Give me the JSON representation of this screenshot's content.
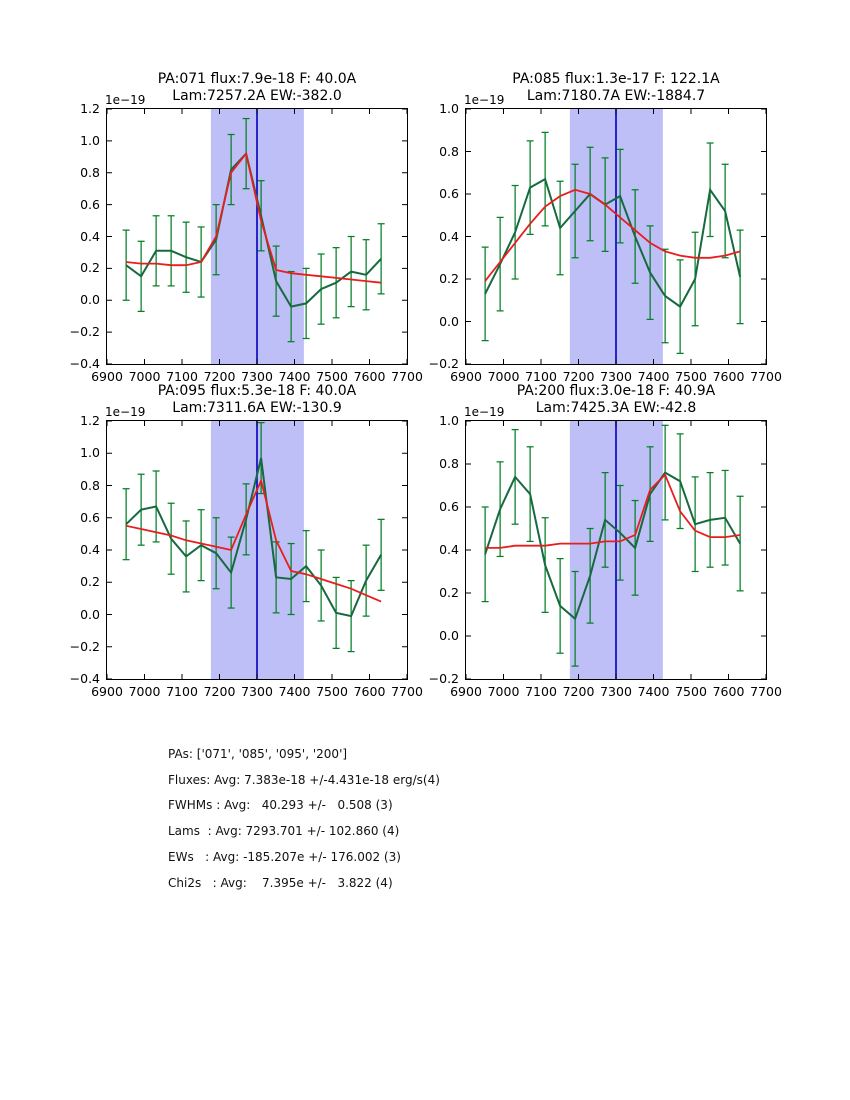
{
  "colors": {
    "background": "#ffffff",
    "band": "#bfbff7",
    "vline": "#0000bf",
    "data_line": "#17693f",
    "error_bar": "#038026",
    "fit_line": "#e81e1e",
    "axis": "#000000"
  },
  "chart_data": [
    {
      "type": "line",
      "title_line1": "PA:071 flux:7.9e-18 F: 40.0A",
      "title_line2": "Lam:7257.2A EW:-382.0",
      "offset_label": "1e−19",
      "xlim": [
        6900,
        7700
      ],
      "ylim": [
        -0.4,
        1.2
      ],
      "xticks": [
        6900,
        7000,
        7100,
        7200,
        7300,
        7400,
        7500,
        7600,
        7700
      ],
      "yticks": [
        -0.4,
        -0.2,
        0.0,
        0.2,
        0.4,
        0.6,
        0.8,
        1.0,
        1.2
      ],
      "band": [
        7177,
        7425
      ],
      "vline": 7300,
      "x": [
        6951,
        6991,
        7031,
        7071,
        7111,
        7151,
        7191,
        7231,
        7271,
        7311,
        7351,
        7391,
        7431,
        7471,
        7511,
        7551,
        7591,
        7631
      ],
      "series": [
        {
          "name": "data",
          "err": 0.22,
          "values": [
            0.22,
            0.15,
            0.31,
            0.31,
            0.27,
            0.24,
            0.38,
            0.82,
            0.92,
            0.53,
            0.12,
            -0.04,
            -0.02,
            0.07,
            0.11,
            0.18,
            0.16,
            0.26
          ]
        },
        {
          "name": "fit",
          "values": [
            0.24,
            0.23,
            0.23,
            0.22,
            0.22,
            0.24,
            0.4,
            0.8,
            0.92,
            0.5,
            0.19,
            0.17,
            0.16,
            0.15,
            0.14,
            0.13,
            0.12,
            0.11
          ]
        }
      ]
    },
    {
      "type": "line",
      "title_line1": "PA:085 flux:1.3e-17 F: 122.1A",
      "title_line2": "Lam:7180.7A EW:-1884.7",
      "offset_label": "1e−19",
      "xlim": [
        6900,
        7700
      ],
      "ylim": [
        -0.2,
        1.0
      ],
      "xticks": [
        6900,
        7000,
        7100,
        7200,
        7300,
        7400,
        7500,
        7600,
        7700
      ],
      "yticks": [
        -0.2,
        0.0,
        0.2,
        0.4,
        0.6,
        0.8,
        1.0
      ],
      "band": [
        7177,
        7425
      ],
      "vline": 7300,
      "x": [
        6951,
        6991,
        7031,
        7071,
        7111,
        7151,
        7191,
        7231,
        7271,
        7311,
        7351,
        7391,
        7431,
        7471,
        7511,
        7551,
        7591,
        7631
      ],
      "series": [
        {
          "name": "data",
          "err": 0.22,
          "values": [
            0.13,
            0.27,
            0.42,
            0.63,
            0.67,
            0.44,
            0.52,
            0.6,
            0.55,
            0.59,
            0.4,
            0.23,
            0.12,
            0.07,
            0.2,
            0.62,
            0.52,
            0.21
          ]
        },
        {
          "name": "fit",
          "values": [
            0.19,
            0.28,
            0.37,
            0.46,
            0.54,
            0.59,
            0.62,
            0.6,
            0.55,
            0.49,
            0.43,
            0.37,
            0.33,
            0.31,
            0.3,
            0.3,
            0.31,
            0.33
          ]
        }
      ]
    },
    {
      "type": "line",
      "title_line1": "PA:095 flux:5.3e-18 F: 40.0A",
      "title_line2": "Lam:7311.6A EW:-130.9",
      "offset_label": "1e−19",
      "xlim": [
        6900,
        7700
      ],
      "ylim": [
        -0.4,
        1.2
      ],
      "xticks": [
        6900,
        7000,
        7100,
        7200,
        7300,
        7400,
        7500,
        7600,
        7700
      ],
      "yticks": [
        -0.4,
        -0.2,
        0.0,
        0.2,
        0.4,
        0.6,
        0.8,
        1.0,
        1.2
      ],
      "band": [
        7177,
        7425
      ],
      "vline": 7300,
      "x": [
        6951,
        6991,
        7031,
        7071,
        7111,
        7151,
        7191,
        7231,
        7271,
        7311,
        7351,
        7391,
        7431,
        7471,
        7511,
        7551,
        7591,
        7631
      ],
      "series": [
        {
          "name": "data",
          "err": 0.22,
          "values": [
            0.56,
            0.65,
            0.67,
            0.47,
            0.36,
            0.43,
            0.38,
            0.26,
            0.59,
            0.97,
            0.23,
            0.22,
            0.3,
            0.18,
            0.01,
            -0.01,
            0.21,
            0.37
          ]
        },
        {
          "name": "fit",
          "values": [
            0.55,
            0.53,
            0.51,
            0.49,
            0.46,
            0.44,
            0.42,
            0.4,
            0.62,
            0.83,
            0.46,
            0.27,
            0.25,
            0.22,
            0.19,
            0.16,
            0.12,
            0.08
          ]
        }
      ]
    },
    {
      "type": "line",
      "title_line1": "PA:200 flux:3.0e-18 F: 40.9A",
      "title_line2": "Lam:7425.3A EW:-42.8",
      "offset_label": "1e−19",
      "xlim": [
        6900,
        7700
      ],
      "ylim": [
        -0.2,
        1.0
      ],
      "xticks": [
        6900,
        7000,
        7100,
        7200,
        7300,
        7400,
        7500,
        7600,
        7700
      ],
      "yticks": [
        -0.2,
        0.0,
        0.2,
        0.4,
        0.6,
        0.8,
        1.0
      ],
      "band": [
        7177,
        7425
      ],
      "vline": 7300,
      "x": [
        6951,
        6991,
        7031,
        7071,
        7111,
        7151,
        7191,
        7231,
        7271,
        7311,
        7351,
        7391,
        7431,
        7471,
        7511,
        7551,
        7591,
        7631
      ],
      "series": [
        {
          "name": "data",
          "err": 0.22,
          "values": [
            0.38,
            0.59,
            0.74,
            0.66,
            0.33,
            0.14,
            0.08,
            0.28,
            0.54,
            0.48,
            0.41,
            0.66,
            0.76,
            0.72,
            0.52,
            0.54,
            0.55,
            0.43
          ]
        },
        {
          "name": "fit",
          "values": [
            0.41,
            0.41,
            0.42,
            0.42,
            0.42,
            0.43,
            0.43,
            0.43,
            0.44,
            0.44,
            0.47,
            0.68,
            0.75,
            0.58,
            0.49,
            0.46,
            0.46,
            0.47
          ]
        }
      ]
    }
  ],
  "summary": {
    "lines": [
      "PAs: ['071', '085', '095', '200']",
      "Fluxes: Avg: 7.383e-18 +/-4.431e-18 erg/s(4)",
      "FWHMs : Avg:   40.293 +/-   0.508 (3)",
      "Lams  : Avg: 7293.701 +/- 102.860 (4)",
      "EWs   : Avg: -185.207e +/- 176.002 (3)",
      "Chi2s   : Avg:    7.395e +/-   3.822 (4)"
    ]
  }
}
